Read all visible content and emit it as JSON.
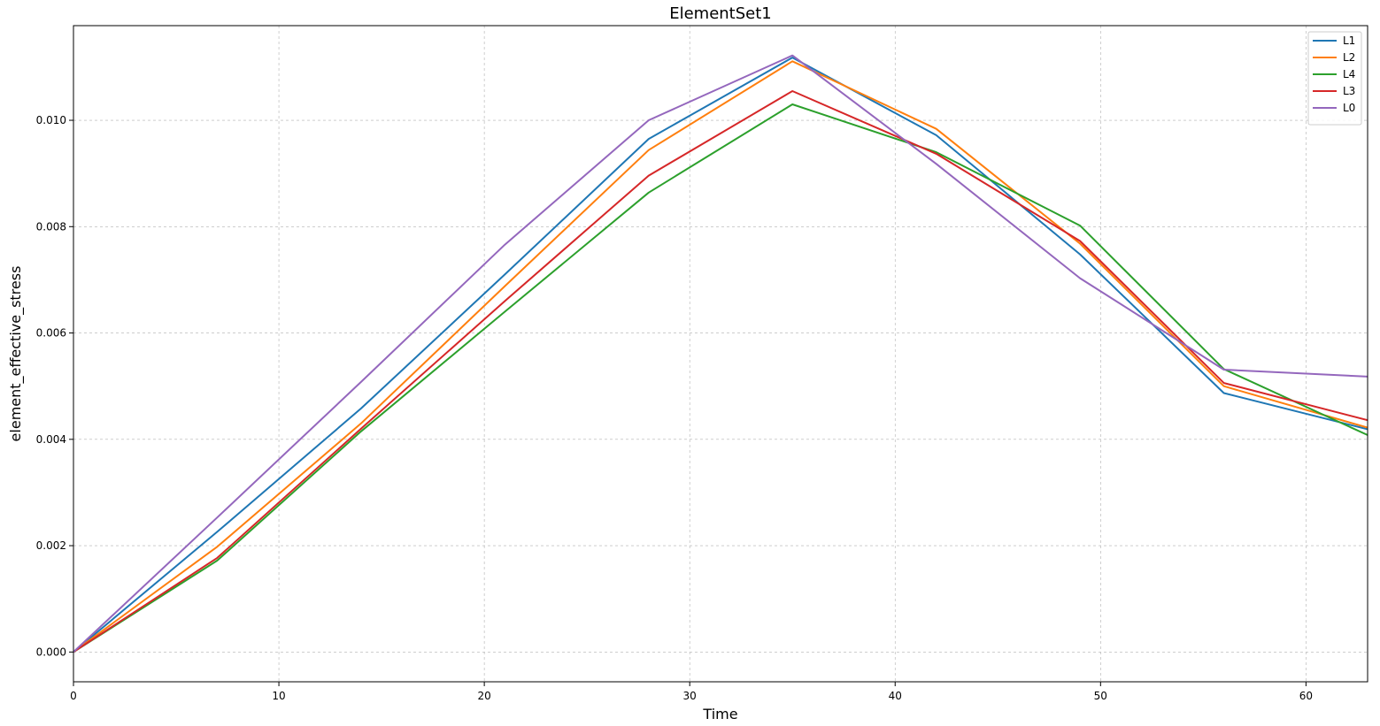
{
  "chart_data": {
    "type": "line",
    "title": "ElementSet1",
    "xlabel": "Time",
    "ylabel": "element_effective_stress",
    "xlim": [
      0,
      63
    ],
    "ylim": [
      -0.00056,
      0.01178
    ],
    "xticks": [
      0,
      10,
      20,
      30,
      40,
      50,
      60
    ],
    "yticks": [
      0.0,
      0.002,
      0.004,
      0.006,
      0.008,
      0.01
    ],
    "ytick_labels": [
      "0.000",
      "0.002",
      "0.004",
      "0.006",
      "0.008",
      "0.010"
    ],
    "grid": true,
    "legend_position": "top-right",
    "series": [
      {
        "name": "L1",
        "color": "#1f77b4",
        "x": [
          0,
          7,
          14,
          21,
          28,
          35,
          42,
          49,
          56,
          63
        ],
        "y": [
          0.0,
          0.00226,
          0.00458,
          0.0071,
          0.00965,
          0.01118,
          0.00972,
          0.00748,
          0.00487,
          0.00419
        ]
      },
      {
        "name": "L2",
        "color": "#ff7f0e",
        "x": [
          0,
          7,
          14,
          21,
          28,
          35,
          42,
          49,
          56,
          63
        ],
        "y": [
          0.0,
          0.00198,
          0.0043,
          0.00688,
          0.00944,
          0.01111,
          0.00984,
          0.00768,
          0.005,
          0.00422
        ]
      },
      {
        "name": "L4",
        "color": "#2ca02c",
        "x": [
          0,
          7,
          14,
          21,
          28,
          35,
          42,
          49,
          56,
          63
        ],
        "y": [
          0.0,
          0.00172,
          0.00415,
          0.0064,
          0.00864,
          0.0103,
          0.0094,
          0.00802,
          0.00532,
          0.00408
        ]
      },
      {
        "name": "L3",
        "color": "#d62728",
        "x": [
          0,
          7,
          14,
          21,
          28,
          35,
          42,
          49,
          56,
          63
        ],
        "y": [
          0.0,
          0.00177,
          0.0042,
          0.0066,
          0.00896,
          0.01055,
          0.00937,
          0.00773,
          0.00506,
          0.00436
        ]
      },
      {
        "name": "L0",
        "color": "#9467bd",
        "x": [
          0,
          7,
          14,
          21,
          28,
          35,
          42,
          49,
          56,
          63
        ],
        "y": [
          0.0,
          0.00253,
          0.00508,
          0.00766,
          0.01,
          0.01122,
          0.00918,
          0.00703,
          0.00531,
          0.00518
        ]
      }
    ]
  }
}
